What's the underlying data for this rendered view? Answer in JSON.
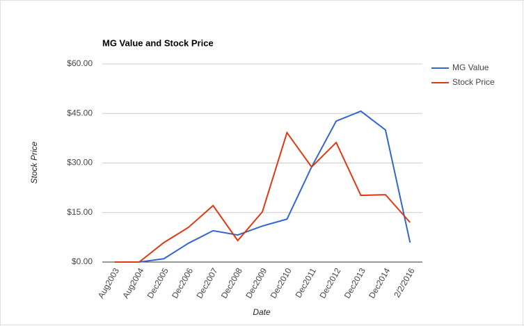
{
  "chart_data": {
    "type": "line",
    "title": "MG Value and Stock Price",
    "x_label": "Date",
    "y_label": "Stock Price",
    "categories": [
      "Aug2003",
      "Aug2004",
      "Dec2005",
      "Dec2006",
      "Dec2007",
      "Dec2008",
      "Dec2009",
      "Dec2010",
      "Dec2011",
      "Dec2012",
      "Dec2013",
      "Dec2014",
      "2/2/2016"
    ],
    "series": [
      {
        "name": "MG Value",
        "color": "#3366cc",
        "values": [
          null,
          0,
          1.0,
          5.7,
          9.5,
          8.2,
          10.9,
          13.0,
          28.8,
          42.7,
          45.7,
          40.0,
          5.9
        ]
      },
      {
        "name": "Stock Price",
        "color": "#dc3912",
        "values": [
          0,
          0,
          5.9,
          10.5,
          17.1,
          6.5,
          15.2,
          39.2,
          28.8,
          36.2,
          20.2,
          20.4,
          12.0
        ]
      }
    ],
    "ylim": [
      0,
      60
    ],
    "yticks": [
      {
        "value": 0,
        "label": "$0.00"
      },
      {
        "value": 15,
        "label": "$15.00"
      },
      {
        "value": 30,
        "label": "$30.00"
      },
      {
        "value": 45,
        "label": "$45.00"
      },
      {
        "value": 60,
        "label": "$60.00"
      }
    ],
    "grid": true,
    "legend": "right"
  }
}
